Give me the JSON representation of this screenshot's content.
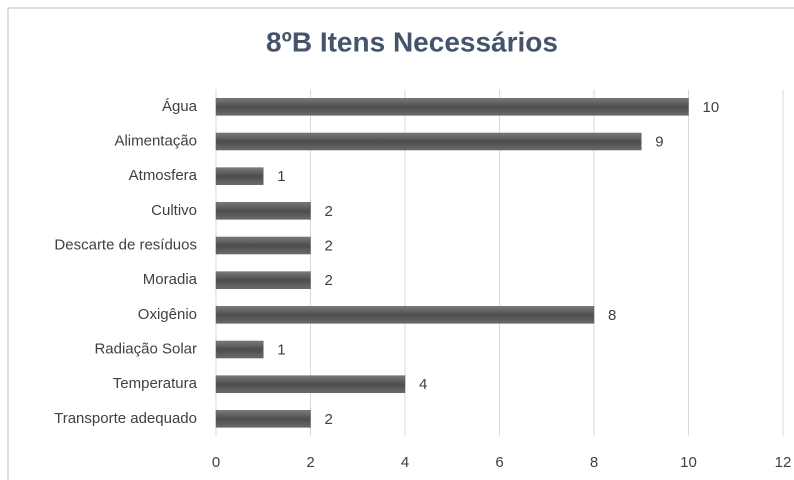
{
  "chart_data": {
    "type": "bar",
    "orientation": "horizontal",
    "title": "8ºB Itens Necessários",
    "categories": [
      "Água",
      "Alimentação",
      "Atmosfera",
      "Cultivo",
      "Descarte de resíduos",
      "Moradia",
      "Oxigênio",
      "Radiação Solar",
      "Temperatura",
      "Transporte adequado"
    ],
    "values": [
      10,
      9,
      1,
      2,
      2,
      2,
      8,
      1,
      4,
      2
    ],
    "color": "#5e5e5e",
    "xlim": [
      0,
      12
    ],
    "xticks": [
      0,
      2,
      4,
      6,
      8,
      10,
      12
    ],
    "grid": true
  }
}
